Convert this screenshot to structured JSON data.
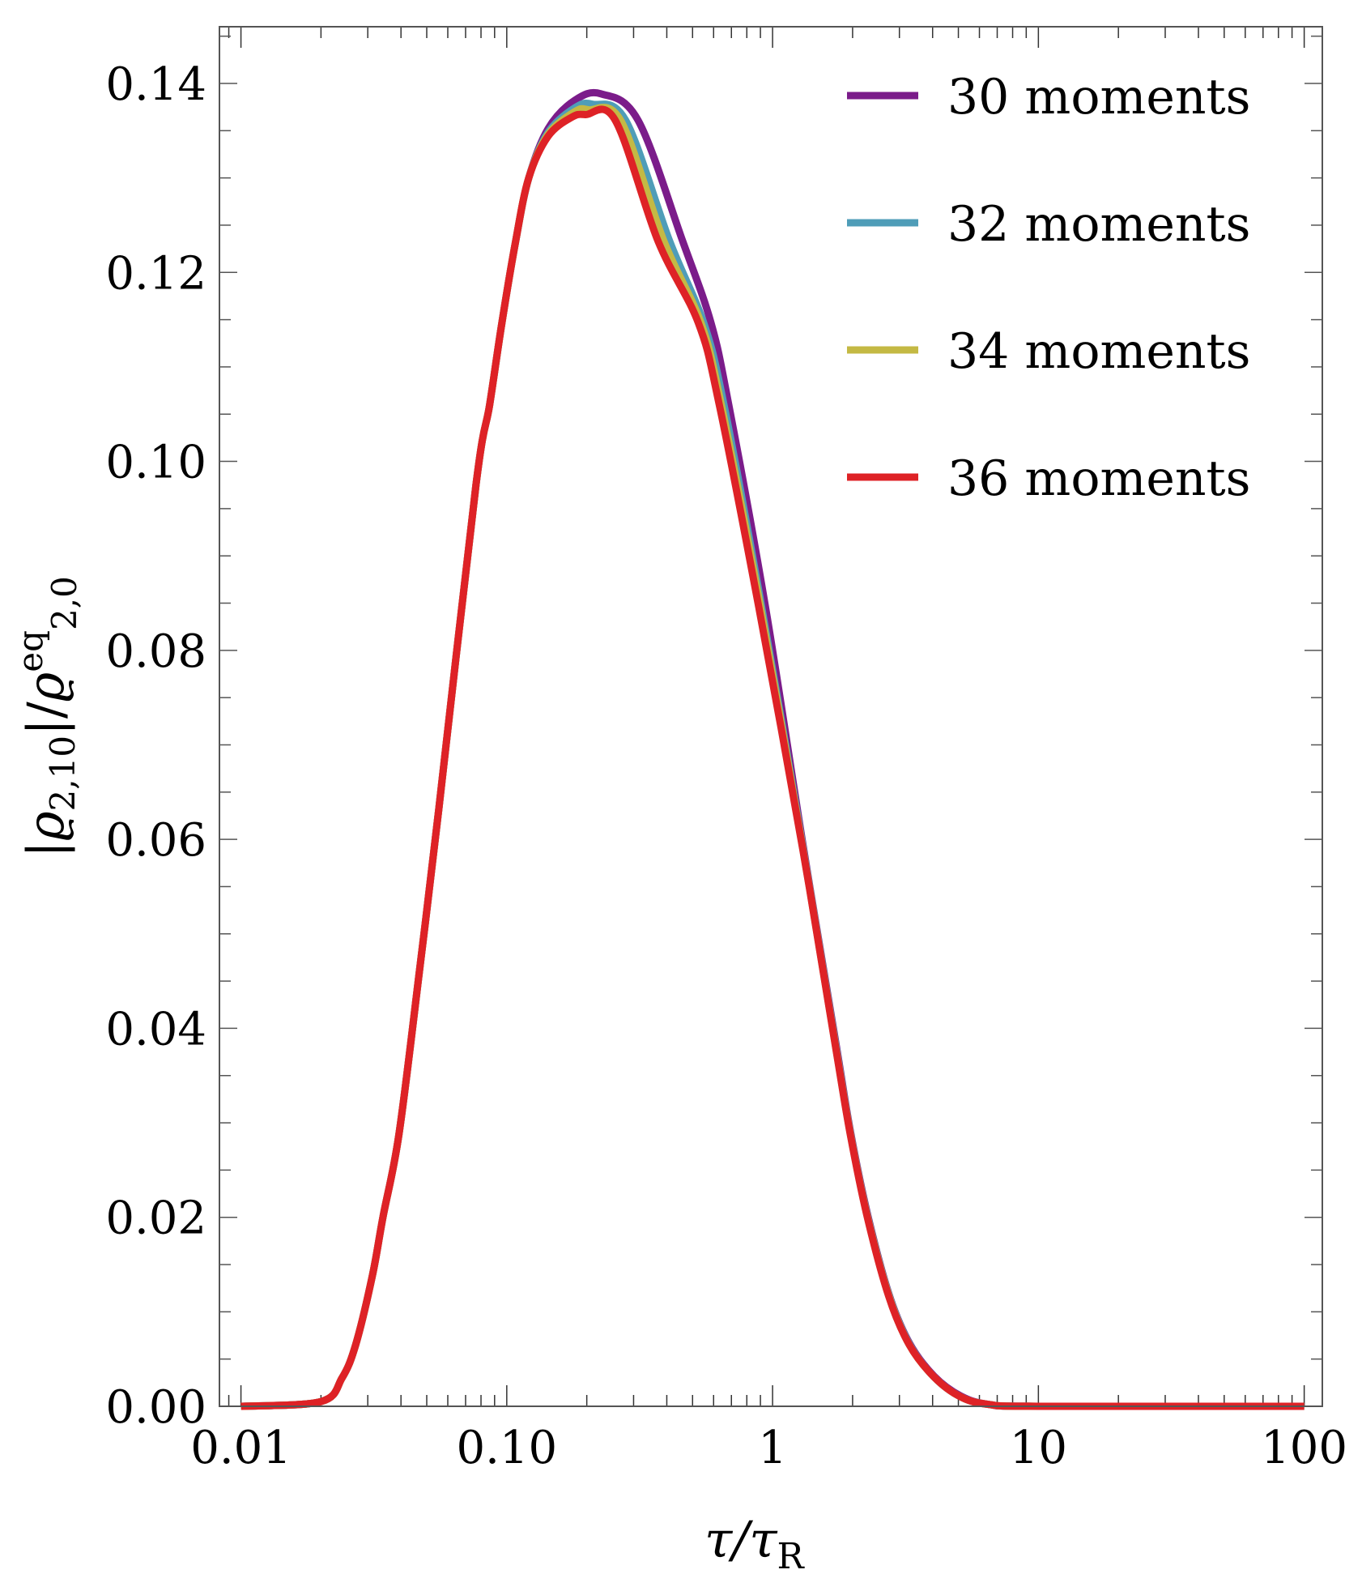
{
  "chart_data": {
    "type": "line",
    "title": "",
    "xlabel": "τ/τ_R",
    "ylabel": "|ϱ_{2,10}|/ϱ^{eq}_{2,0}",
    "x_scale": "log",
    "xlim": [
      0.0083,
      117
    ],
    "ylim": [
      0.0,
      0.146
    ],
    "grid": false,
    "legend_position": "upper right",
    "x_ticks": [
      0.01,
      0.1,
      1,
      10,
      100
    ],
    "x_tick_labels": [
      "0.01",
      "0.10",
      "1",
      "10",
      "100"
    ],
    "y_ticks": [
      0.0,
      0.02,
      0.04,
      0.06,
      0.08,
      0.1,
      0.12,
      0.14
    ],
    "y_tick_labels": [
      "0.00",
      "0.02",
      "0.04",
      "0.06",
      "0.08",
      "0.10",
      "0.12",
      "0.14"
    ],
    "series": [
      {
        "name": "30 moments",
        "color": "#7b1c8a",
        "x": [
          0.01,
          0.02,
          0.024,
          0.027,
          0.0312,
          0.0342,
          0.0393,
          0.0469,
          0.0555,
          0.0766,
          0.0862,
          0.0959,
          0.108,
          0.121,
          0.143,
          0.18,
          0.226,
          0.312,
          0.459,
          0.586,
          0.683,
          0.94,
          1.3,
          1.74,
          1.96,
          2.26,
          2.73,
          3.27,
          4.05,
          5.1,
          6.5,
          10,
          100
        ],
        "y": [
          0.0,
          0.0005,
          0.003,
          0.0065,
          0.0138,
          0.02,
          0.0288,
          0.046,
          0.0632,
          0.0975,
          0.106,
          0.1147,
          0.1233,
          0.13,
          0.1352,
          0.1382,
          0.1389,
          0.1361,
          0.1233,
          0.1147,
          0.1061,
          0.0846,
          0.0595,
          0.038,
          0.0292,
          0.0207,
          0.012,
          0.0067,
          0.0032,
          0.0011,
          0.0002,
          0.0,
          0.0
        ]
      },
      {
        "name": "32 moments",
        "color": "#4f9db8",
        "x": [
          0.01,
          0.02,
          0.024,
          0.027,
          0.0312,
          0.0342,
          0.0393,
          0.0469,
          0.0555,
          0.0766,
          0.0862,
          0.0959,
          0.108,
          0.121,
          0.143,
          0.18,
          0.21,
          0.28,
          0.41,
          0.55,
          0.655,
          0.91,
          1.3,
          1.74,
          1.96,
          2.26,
          2.73,
          3.27,
          4.05,
          5.1,
          6.5,
          10,
          100
        ],
        "y": [
          0.0,
          0.0005,
          0.003,
          0.0065,
          0.0138,
          0.02,
          0.0288,
          0.046,
          0.0632,
          0.0975,
          0.106,
          0.1147,
          0.1233,
          0.13,
          0.1348,
          0.1374,
          0.1378,
          0.1361,
          0.1233,
          0.1147,
          0.1061,
          0.0846,
          0.0592,
          0.0377,
          0.029,
          0.0205,
          0.0119,
          0.0066,
          0.0031,
          0.001,
          0.0002,
          0.0,
          0.0
        ]
      },
      {
        "name": "34 moments",
        "color": "#c4b944",
        "x": [
          0.01,
          0.02,
          0.024,
          0.027,
          0.0312,
          0.0342,
          0.0393,
          0.0469,
          0.0555,
          0.0766,
          0.0862,
          0.0959,
          0.108,
          0.121,
          0.143,
          0.18,
          0.203,
          0.268,
          0.39,
          0.537,
          0.64,
          0.9,
          1.3,
          1.74,
          1.96,
          2.26,
          2.73,
          3.27,
          4.05,
          5.1,
          6.5,
          10,
          100
        ],
        "y": [
          0.0,
          0.0005,
          0.003,
          0.0065,
          0.0138,
          0.02,
          0.0288,
          0.046,
          0.0632,
          0.0975,
          0.106,
          0.1147,
          0.1233,
          0.13,
          0.1346,
          0.137,
          0.1372,
          0.1361,
          0.1233,
          0.1147,
          0.1061,
          0.0846,
          0.059,
          0.0375,
          0.0289,
          0.0204,
          0.0118,
          0.0065,
          0.0031,
          0.001,
          0.0002,
          0.0,
          0.0
        ]
      },
      {
        "name": "36 moments",
        "color": "#de2226",
        "x": [
          0.01,
          0.02,
          0.024,
          0.027,
          0.0312,
          0.0342,
          0.0393,
          0.0469,
          0.0555,
          0.0766,
          0.0862,
          0.0959,
          0.108,
          0.121,
          0.143,
          0.175,
          0.198,
          0.256,
          0.371,
          0.525,
          0.629,
          0.887,
          1.3,
          1.74,
          1.96,
          2.26,
          2.73,
          3.27,
          4.05,
          5.1,
          6.5,
          10,
          100
        ],
        "y": [
          0.0,
          0.0005,
          0.003,
          0.0065,
          0.0138,
          0.02,
          0.0288,
          0.046,
          0.0632,
          0.0975,
          0.106,
          0.1147,
          0.1233,
          0.13,
          0.1344,
          0.1364,
          0.1367,
          0.1361,
          0.1233,
          0.1147,
          0.1061,
          0.0846,
          0.0589,
          0.0374,
          0.0288,
          0.0203,
          0.0117,
          0.0065,
          0.0031,
          0.001,
          0.0002,
          0.0,
          0.0
        ]
      }
    ]
  },
  "legend": {
    "items": [
      {
        "label": "30 moments",
        "color": "#7b1c8a"
      },
      {
        "label": "32 moments",
        "color": "#4f9db8"
      },
      {
        "label": "34 moments",
        "color": "#c4b944"
      },
      {
        "label": "36 moments",
        "color": "#de2226"
      }
    ]
  },
  "axes": {
    "x_title_main": "τ/τ",
    "x_title_sub": "R",
    "y_title_parts": {
      "bar_open": "|",
      "rho": "ϱ",
      "sub1": "2,10",
      "mid": "|/",
      "rho2": "ϱ",
      "sup": "eq",
      "sub2": "2,0"
    }
  }
}
